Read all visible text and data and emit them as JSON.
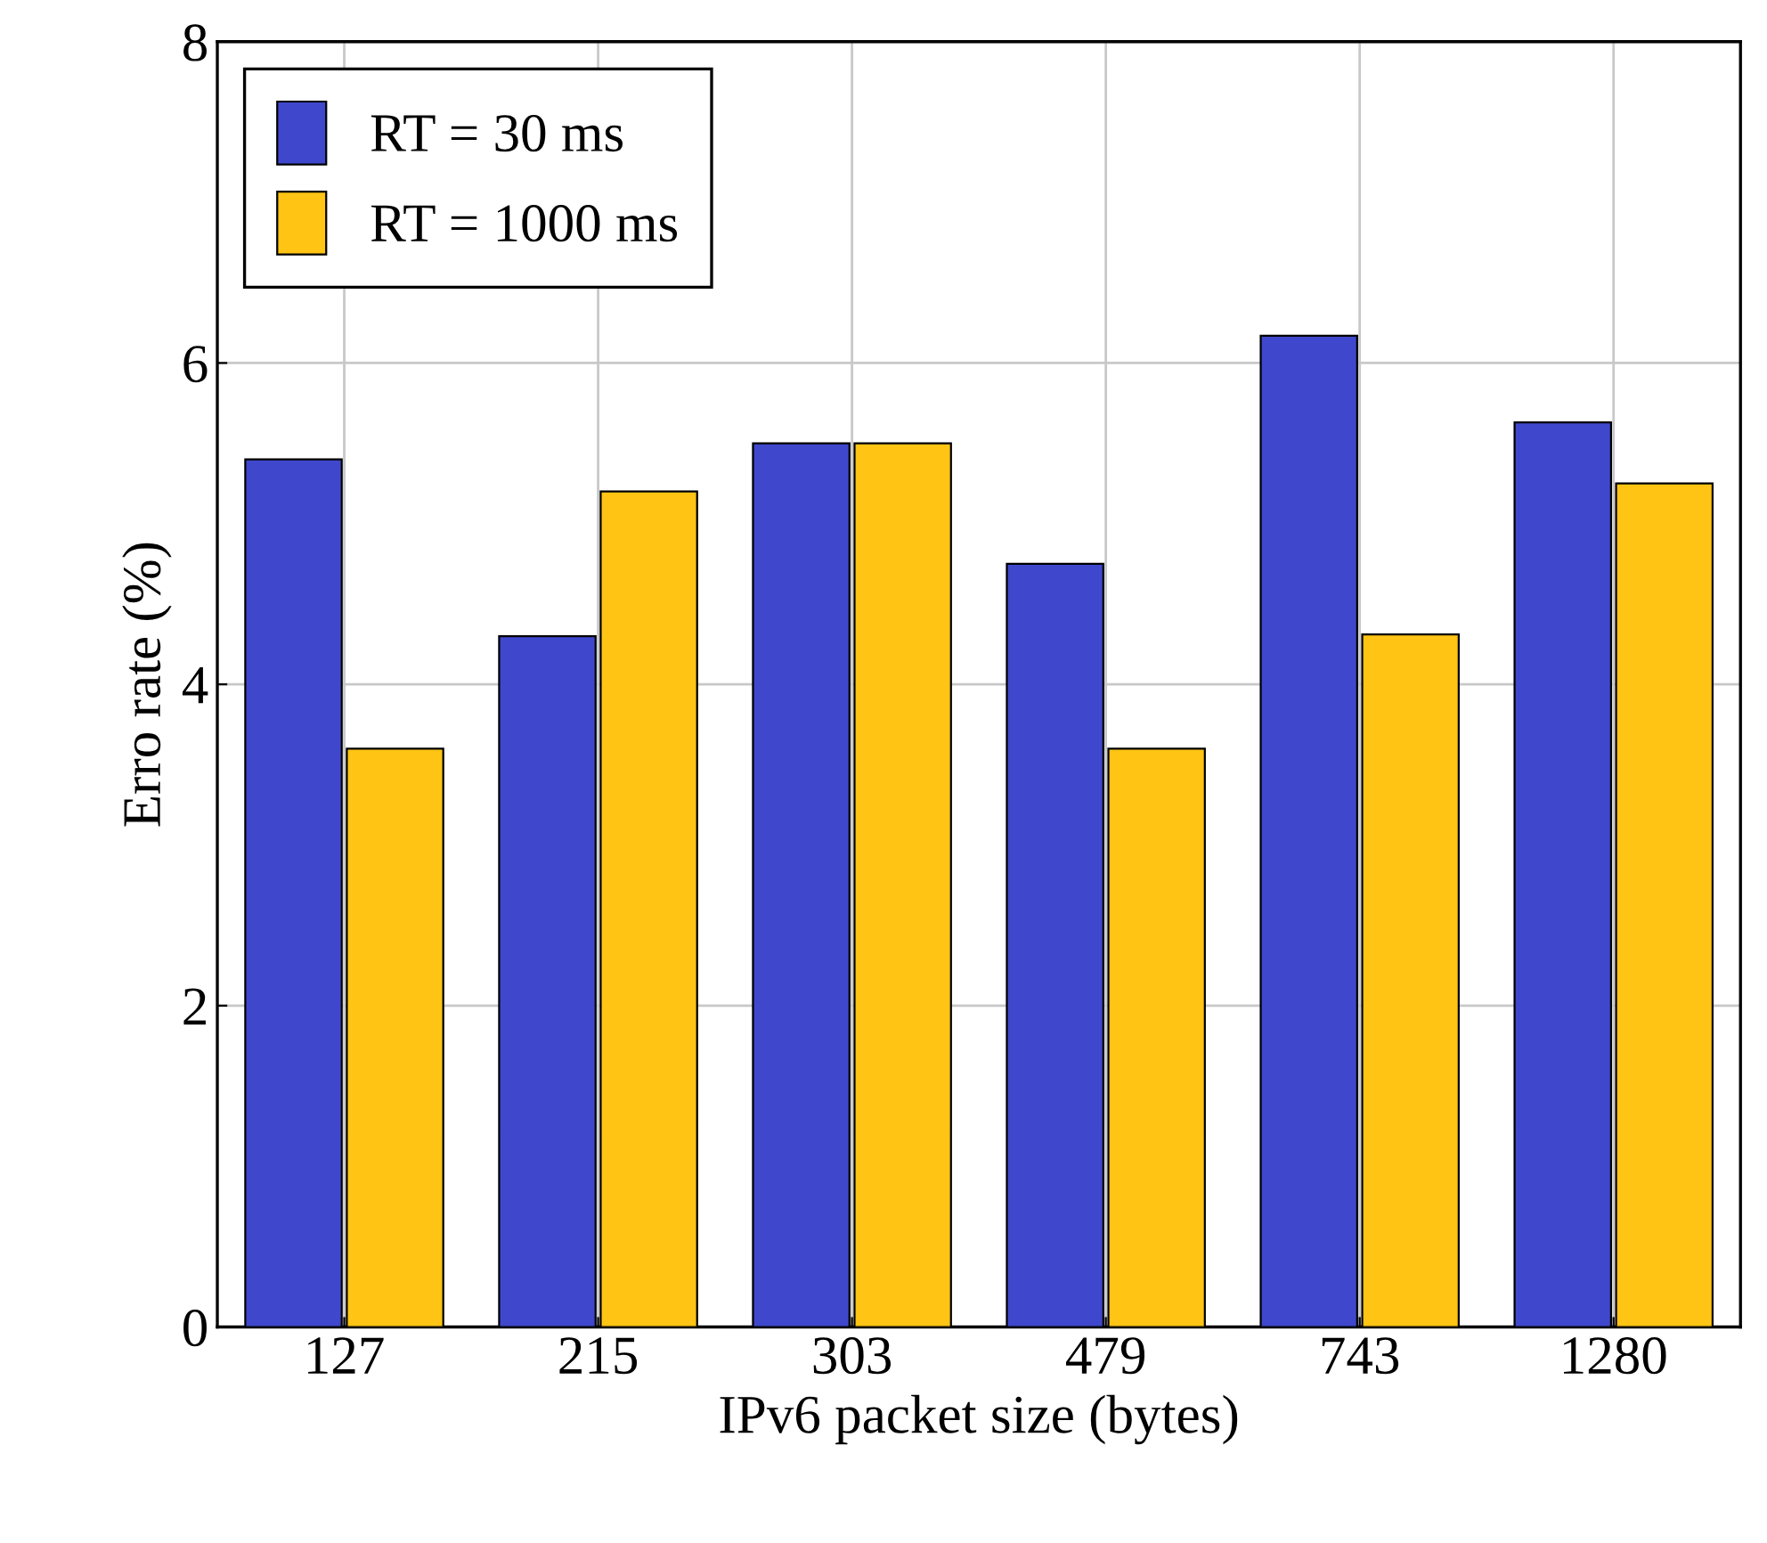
{
  "chart_data": {
    "type": "bar",
    "xlabel": "IPv6 packet size (bytes)",
    "ylabel": "Erro rate (%)",
    "categories": [
      "127",
      "215",
      "303",
      "479",
      "743",
      "1280"
    ],
    "series": [
      {
        "name": "RT = 30 ms",
        "color": "#3f48cc",
        "values": [
          5.4,
          4.3,
          5.5,
          4.75,
          6.17,
          5.63
        ]
      },
      {
        "name": "RT = 1000 ms",
        "color": "#ffc414",
        "values": [
          3.6,
          5.2,
          5.5,
          3.6,
          4.31,
          5.25
        ]
      }
    ],
    "ylim": [
      0,
      8
    ],
    "yticks": [
      0,
      2,
      4,
      6,
      8
    ],
    "grid": true,
    "legend": "top left"
  }
}
